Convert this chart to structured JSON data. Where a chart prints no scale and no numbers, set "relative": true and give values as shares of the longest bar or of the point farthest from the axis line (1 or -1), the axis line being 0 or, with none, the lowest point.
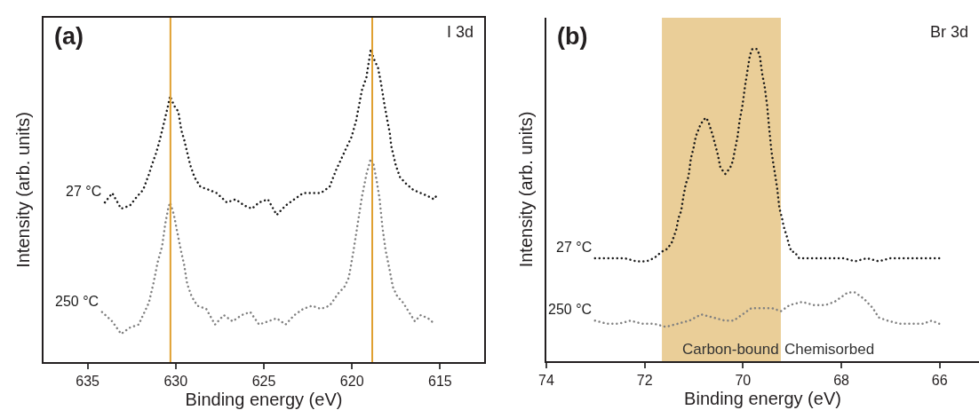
{
  "chart_data": [
    {
      "type": "line",
      "relative": true,
      "xlabel": "Binding energy (eV)",
      "ylabel": "Intensity (arb. units)",
      "annotations": [
        "(a)",
        "I 3d"
      ],
      "xlim": [
        637.5,
        612.5
      ],
      "xticks": [
        635,
        630,
        625,
        620,
        615
      ],
      "line_style": "dotted",
      "legend": false,
      "grid": false,
      "tick_labels": "x",
      "ref_lines": [
        {
          "axis": "x",
          "value": 630.3,
          "color": "#e0a030"
        },
        {
          "axis": "x",
          "value": 618.85,
          "color": "#e0a030"
        }
      ],
      "series": [
        {
          "name": "27 °C",
          "color": "#1a1a1a",
          "x": [
            634.02,
            633.6,
            633.1,
            632.6,
            632.18,
            631.85,
            631.52,
            631.35,
            631.1,
            630.9,
            630.77,
            630.6,
            630.43,
            630.32,
            630.1,
            629.85,
            629.68,
            629.52,
            629.35,
            629.18,
            628.93,
            628.6,
            628.1,
            627.68,
            627.1,
            626.6,
            626.1,
            625.68,
            625.27,
            624.77,
            624.27,
            623.77,
            623.27,
            622.77,
            622.27,
            621.77,
            621.27,
            620.93,
            620.6,
            620.27,
            620.02,
            619.77,
            619.6,
            619.43,
            619.18,
            618.93,
            618.77,
            618.52,
            618.35,
            618.18,
            618.02,
            617.85,
            617.77,
            617.52,
            617.27,
            616.93,
            616.52,
            616.1,
            615.68,
            615.35,
            615.1
          ],
          "values": [
            0.51,
            0.54,
            0.49,
            0.5,
            0.53,
            0.55,
            0.6,
            0.63,
            0.67,
            0.71,
            0.74,
            0.78,
            0.82,
            0.85,
            0.82,
            0.8,
            0.74,
            0.71,
            0.67,
            0.63,
            0.59,
            0.56,
            0.55,
            0.54,
            0.51,
            0.52,
            0.5,
            0.49,
            0.51,
            0.52,
            0.47,
            0.5,
            0.52,
            0.54,
            0.54,
            0.54,
            0.56,
            0.61,
            0.65,
            0.69,
            0.72,
            0.77,
            0.82,
            0.87,
            0.91,
            1.0,
            0.97,
            0.94,
            0.89,
            0.83,
            0.78,
            0.73,
            0.69,
            0.63,
            0.59,
            0.57,
            0.55,
            0.54,
            0.53,
            0.52,
            0.54
          ]
        },
        {
          "name": "250 °C",
          "color": "#808080",
          "x": [
            634.18,
            633.6,
            633.1,
            632.6,
            632.1,
            631.77,
            631.52,
            631.27,
            631.02,
            630.77,
            630.6,
            630.43,
            630.32,
            630.1,
            629.93,
            629.68,
            629.52,
            629.35,
            629.1,
            628.77,
            628.27,
            627.77,
            627.27,
            626.77,
            626.27,
            625.77,
            625.27,
            624.77,
            624.27,
            623.77,
            623.27,
            622.77,
            622.27,
            621.77,
            621.27,
            620.77,
            620.43,
            620.18,
            619.93,
            619.68,
            619.43,
            619.18,
            618.93,
            618.77,
            618.6,
            618.43,
            618.27,
            618.1,
            617.85,
            617.68,
            617.43,
            617.1,
            616.77,
            616.43,
            616.1,
            615.68,
            615.27
          ],
          "values": [
            0.16,
            0.13,
            0.09,
            0.11,
            0.12,
            0.16,
            0.19,
            0.25,
            0.32,
            0.37,
            0.44,
            0.49,
            0.51,
            0.47,
            0.42,
            0.35,
            0.31,
            0.25,
            0.21,
            0.18,
            0.17,
            0.12,
            0.15,
            0.13,
            0.15,
            0.16,
            0.12,
            0.13,
            0.14,
            0.12,
            0.15,
            0.17,
            0.18,
            0.17,
            0.18,
            0.22,
            0.24,
            0.27,
            0.35,
            0.44,
            0.53,
            0.6,
            0.65,
            0.63,
            0.58,
            0.52,
            0.43,
            0.36,
            0.29,
            0.24,
            0.21,
            0.19,
            0.16,
            0.13,
            0.15,
            0.14,
            0.12
          ]
        }
      ]
    },
    {
      "type": "line",
      "relative": true,
      "xlabel": "Binding energy (eV)",
      "ylabel": "Intensity (arb. units)",
      "annotations": [
        "(b)",
        "Br 3d",
        {
          "text": "Chemisorbed",
          "x": 69.23
        }
      ],
      "xlim": [
        74,
        65.2
      ],
      "xticks": [
        74,
        72,
        70,
        68,
        66
      ],
      "line_style": "dotted",
      "legend": false,
      "grid": false,
      "tick_labels": "x",
      "bands": [
        {
          "axis": "x",
          "from": 71.65,
          "to": 69.23,
          "label": "Carbon-bound",
          "color": "#e6c586"
        }
      ],
      "series": [
        {
          "name": "27 °C",
          "color": "#1a1a1a",
          "x": [
            73.01,
            72.86,
            72.65,
            72.41,
            72.17,
            71.96,
            71.81,
            71.66,
            71.54,
            71.45,
            71.36,
            71.31,
            71.26,
            71.21,
            71.16,
            71.11,
            71.06,
            71.01,
            70.96,
            70.91,
            70.86,
            70.81,
            70.76,
            70.71,
            70.67,
            70.61,
            70.56,
            70.51,
            70.46,
            70.41,
            70.36,
            70.31,
            70.26,
            70.21,
            70.16,
            70.11,
            70.07,
            70.01,
            69.96,
            69.92,
            69.86,
            69.81,
            69.77,
            69.72,
            69.66,
            69.61,
            69.56,
            69.51,
            69.47,
            69.42,
            69.36,
            69.31,
            69.26,
            69.21,
            69.17,
            69.11,
            69.06,
            69.01,
            68.95,
            68.86,
            68.68,
            68.44,
            68.2,
            67.96,
            67.72,
            67.48,
            67.24,
            67.0,
            66.76,
            66.52,
            66.28,
            66.01
          ],
          "values": [
            0.33,
            0.33,
            0.33,
            0.33,
            0.32,
            0.32,
            0.33,
            0.35,
            0.36,
            0.38,
            0.42,
            0.46,
            0.48,
            0.53,
            0.57,
            0.59,
            0.65,
            0.68,
            0.72,
            0.74,
            0.76,
            0.77,
            0.78,
            0.77,
            0.75,
            0.72,
            0.69,
            0.66,
            0.62,
            0.61,
            0.6,
            0.61,
            0.62,
            0.64,
            0.68,
            0.72,
            0.77,
            0.82,
            0.88,
            0.92,
            0.98,
            1.0,
            1.0,
            1.0,
            0.98,
            0.92,
            0.88,
            0.82,
            0.75,
            0.67,
            0.61,
            0.56,
            0.49,
            0.46,
            0.43,
            0.4,
            0.37,
            0.35,
            0.35,
            0.33,
            0.33,
            0.33,
            0.33,
            0.33,
            0.32,
            0.33,
            0.32,
            0.33,
            0.33,
            0.33,
            0.33,
            0.33
          ]
        },
        {
          "name": "250 °C",
          "color": "#808080",
          "x": [
            73.01,
            72.77,
            72.53,
            72.29,
            72.05,
            71.81,
            71.57,
            71.33,
            71.09,
            70.85,
            70.61,
            70.37,
            70.19,
            70.01,
            69.83,
            69.65,
            69.41,
            69.23,
            69.05,
            68.8,
            68.56,
            68.32,
            68.14,
            67.96,
            67.87,
            67.72,
            67.54,
            67.36,
            67.24,
            67.06,
            66.82,
            66.58,
            66.34,
            66.16,
            66.01
          ],
          "values": [
            0.13,
            0.12,
            0.12,
            0.13,
            0.12,
            0.12,
            0.11,
            0.12,
            0.13,
            0.15,
            0.14,
            0.13,
            0.13,
            0.15,
            0.17,
            0.17,
            0.17,
            0.16,
            0.18,
            0.19,
            0.18,
            0.18,
            0.19,
            0.21,
            0.22,
            0.22,
            0.2,
            0.17,
            0.14,
            0.13,
            0.12,
            0.12,
            0.12,
            0.13,
            0.12
          ]
        }
      ]
    }
  ]
}
